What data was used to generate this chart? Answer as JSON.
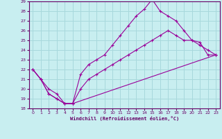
{
  "xlabel": "Windchill (Refroidissement éolien,°C)",
  "bg_color": "#c8eef0",
  "grid_color": "#a8d8dc",
  "line_color": "#990099",
  "xlim": [
    -0.5,
    23.5
  ],
  "ylim": [
    18,
    29
  ],
  "xticks": [
    0,
    1,
    2,
    3,
    4,
    5,
    6,
    7,
    8,
    9,
    10,
    11,
    12,
    13,
    14,
    15,
    16,
    17,
    18,
    19,
    20,
    21,
    22,
    23
  ],
  "yticks": [
    18,
    19,
    20,
    21,
    22,
    23,
    24,
    25,
    26,
    27,
    28,
    29
  ],
  "line1_x": [
    0,
    1,
    2,
    3,
    4,
    5,
    6,
    7,
    8,
    9,
    10,
    11,
    12,
    13,
    14,
    15,
    16,
    17,
    18,
    19,
    20,
    21,
    22,
    23
  ],
  "line1_y": [
    22.0,
    21.0,
    19.5,
    19.0,
    18.5,
    18.5,
    21.5,
    22.5,
    23.0,
    23.5,
    24.5,
    25.5,
    26.5,
    27.5,
    28.2,
    29.2,
    28.0,
    27.5,
    27.0,
    26.0,
    25.0,
    24.5,
    24.0,
    23.5
  ],
  "line2_x": [
    0,
    1,
    2,
    3,
    4,
    5,
    6,
    7,
    8,
    9,
    10,
    11,
    12,
    13,
    14,
    15,
    16,
    17,
    18,
    19,
    20,
    21,
    22,
    23
  ],
  "line2_y": [
    22.0,
    21.0,
    20.0,
    19.5,
    18.5,
    18.5,
    20.0,
    21.0,
    21.5,
    22.0,
    22.5,
    23.0,
    23.5,
    24.0,
    24.5,
    25.0,
    25.5,
    26.0,
    25.5,
    25.0,
    25.0,
    24.8,
    23.5,
    23.5
  ],
  "line3_x": [
    0,
    1,
    2,
    3,
    4,
    5,
    23
  ],
  "line3_y": [
    22.0,
    21.0,
    19.5,
    19.0,
    18.5,
    18.5,
    23.5
  ]
}
